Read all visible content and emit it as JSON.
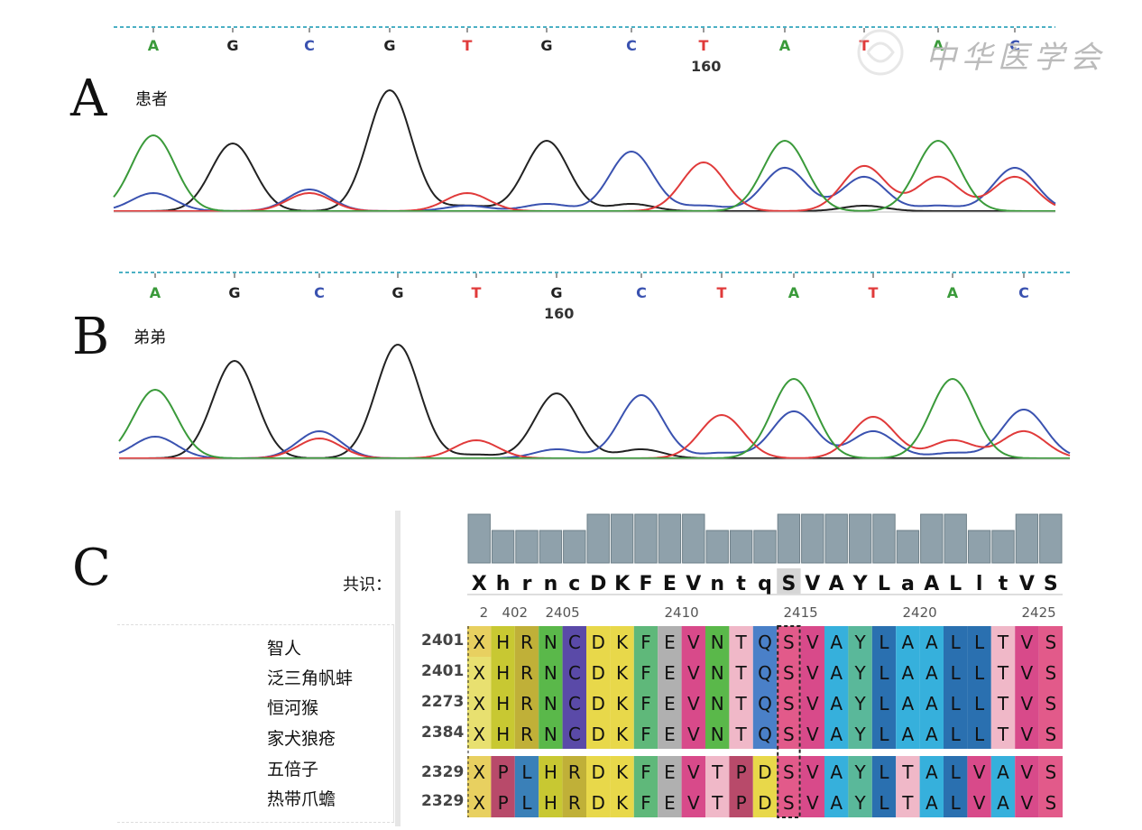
{
  "panels": {
    "A": {
      "letter": "A",
      "label": "患者",
      "position_label": "160",
      "bases": [
        "A",
        "G",
        "C",
        "G",
        "T",
        "G",
        "C",
        "T",
        "A",
        "T",
        "A",
        "C"
      ]
    },
    "B": {
      "letter": "B",
      "label": "弟弟",
      "position_label": "160",
      "bases": [
        "A",
        "G",
        "C",
        "G",
        "T",
        "G",
        "C",
        "T",
        "A",
        "T",
        "A",
        "C"
      ]
    },
    "C": {
      "letter": "C",
      "consensus_label": "共识："
    }
  },
  "base_colors": {
    "A": "#3a9a3a",
    "G": "#222222",
    "C": "#3a52b0",
    "T": "#e03a3a"
  },
  "watermark": "中华医学会",
  "alignment": {
    "consensus": [
      "X",
      "h",
      "r",
      "n",
      "c",
      "D",
      "K",
      "F",
      "E",
      "V",
      "n",
      "t",
      "q",
      "S",
      "V",
      "A",
      "Y",
      "L",
      "a",
      "A",
      "L",
      "l",
      "t",
      "V",
      "S"
    ],
    "ruler_ticks": [
      "2",
      "402",
      "2405",
      "2410",
      "2415",
      "2420",
      "2425"
    ],
    "conservation": [
      3,
      2,
      2,
      2,
      2,
      3,
      3,
      3,
      3,
      3,
      2,
      2,
      2,
      3,
      3,
      3,
      3,
      3,
      2,
      3,
      3,
      2,
      2,
      3,
      3
    ],
    "species": [
      "智人",
      "泛三角帆蚌",
      "恒河猴",
      "家犬狼疮",
      "五倍子",
      "热带爪蟾"
    ],
    "row_starts": [
      "2401",
      "2401",
      "2273",
      "2384",
      "2329",
      "2329"
    ],
    "rows": [
      [
        "X",
        "H",
        "R",
        "N",
        "C",
        "D",
        "K",
        "F",
        "E",
        "V",
        "N",
        "T",
        "Q",
        "S",
        "V",
        "A",
        "Y",
        "L",
        "A",
        "A",
        "L",
        "L",
        "T",
        "V",
        "S"
      ],
      [
        "X",
        "H",
        "R",
        "N",
        "C",
        "D",
        "K",
        "F",
        "E",
        "V",
        "N",
        "T",
        "Q",
        "S",
        "V",
        "A",
        "Y",
        "L",
        "A",
        "A",
        "L",
        "L",
        "T",
        "V",
        "S"
      ],
      [
        "X",
        "H",
        "R",
        "N",
        "C",
        "D",
        "K",
        "F",
        "E",
        "V",
        "N",
        "T",
        "Q",
        "S",
        "V",
        "A",
        "Y",
        "L",
        "A",
        "A",
        "L",
        "L",
        "T",
        "V",
        "S"
      ],
      [
        "X",
        "H",
        "R",
        "N",
        "C",
        "D",
        "K",
        "F",
        "E",
        "V",
        "N",
        "T",
        "Q",
        "S",
        "V",
        "A",
        "Y",
        "L",
        "A",
        "A",
        "L",
        "L",
        "T",
        "V",
        "S"
      ],
      [
        "X",
        "P",
        "L",
        "H",
        "R",
        "D",
        "K",
        "F",
        "E",
        "V",
        "T",
        "P",
        "D",
        "S",
        "V",
        "A",
        "Y",
        "L",
        "T",
        "A",
        "L",
        "V",
        "A",
        "V",
        "S"
      ],
      [
        "X",
        "P",
        "L",
        "H",
        "R",
        "D",
        "K",
        "F",
        "E",
        "V",
        "T",
        "P",
        "D",
        "S",
        "V",
        "A",
        "Y",
        "L",
        "T",
        "A",
        "L",
        "V",
        "A",
        "V",
        "S"
      ]
    ]
  }
}
